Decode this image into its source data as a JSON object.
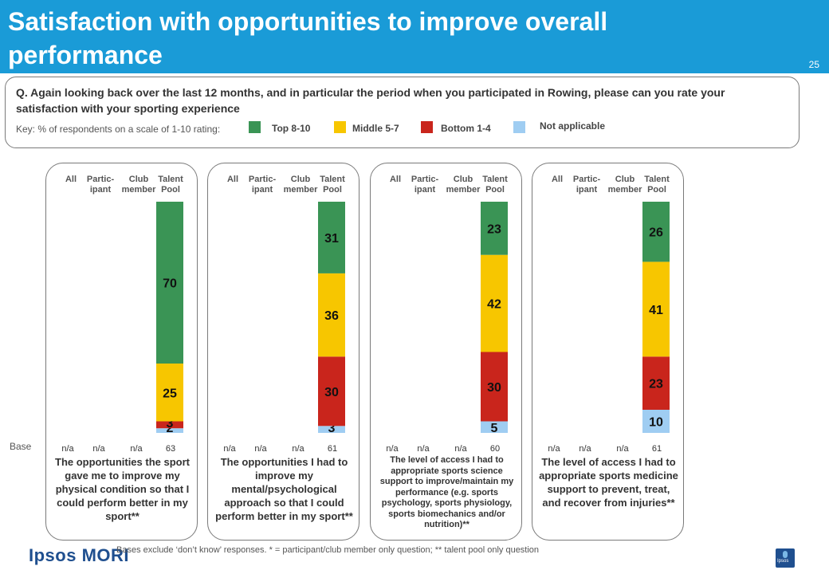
{
  "header": {
    "title": "Satisfaction with opportunities to improve overall performance",
    "page_number": "25"
  },
  "question": {
    "text": "Q. Again looking back over the last 12 months, and in particular the period when you participated in Rowing, please can you rate your satisfaction with your sporting experience",
    "key_label": "Key: % of respondents on a scale of 1-10 rating:",
    "legend": [
      {
        "label": "Top 8-10",
        "color": "#3a9455"
      },
      {
        "label": "Middle 5-7",
        "color": "#f7c600"
      },
      {
        "label": "Bottom 1-4",
        "color": "#c9251c"
      },
      {
        "label": "Not applicable",
        "color": "#9fcdf2"
      }
    ]
  },
  "columns": [
    "All",
    "Partic-\nipant",
    "Club\nmember",
    "Talent\nPool"
  ],
  "base_label": "Base",
  "chart_data": [
    {
      "type": "bar",
      "stacked": true,
      "title": "The opportunities the sport gave me to improve my physical condition so that I could perform better in my sport**",
      "categories": [
        "All",
        "Partic-ipant",
        "Club member",
        "Talent Pool"
      ],
      "bases": [
        "n/a",
        "n/a",
        "n/a",
        "63"
      ],
      "series": [
        {
          "name": "Not applicable",
          "values": [
            null,
            null,
            null,
            2
          ]
        },
        {
          "name": "Bottom 1-4",
          "values": [
            null,
            null,
            null,
            3
          ]
        },
        {
          "name": "Middle 5-7",
          "values": [
            null,
            null,
            null,
            25
          ]
        },
        {
          "name": "Top 8-10",
          "values": [
            null,
            null,
            null,
            70
          ]
        }
      ],
      "ylim": [
        0,
        100
      ]
    },
    {
      "type": "bar",
      "stacked": true,
      "title": "The opportunities I had to improve my mental/psychological approach so that I could perform better in my sport**",
      "categories": [
        "All",
        "Partic-ipant",
        "Club member",
        "Talent Pool"
      ],
      "bases": [
        "n/a",
        "n/a",
        "n/a",
        "61"
      ],
      "series": [
        {
          "name": "Not applicable",
          "values": [
            null,
            null,
            null,
            3
          ]
        },
        {
          "name": "Bottom 1-4",
          "values": [
            null,
            null,
            null,
            30
          ]
        },
        {
          "name": "Middle 5-7",
          "values": [
            null,
            null,
            null,
            36
          ]
        },
        {
          "name": "Top 8-10",
          "values": [
            null,
            null,
            null,
            31
          ]
        }
      ],
      "ylim": [
        0,
        100
      ]
    },
    {
      "type": "bar",
      "stacked": true,
      "title": "The level of access I had to appropriate sports science support to improve/maintain my performance (e.g. sports psychology, sports physiology, sports biomechanics and/or nutrition)**",
      "categories": [
        "All",
        "Partic-ipant",
        "Club member",
        "Talent Pool"
      ],
      "bases": [
        "n/a",
        "n/a",
        "n/a",
        "60"
      ],
      "series": [
        {
          "name": "Not applicable",
          "values": [
            null,
            null,
            null,
            5
          ]
        },
        {
          "name": "Bottom 1-4",
          "values": [
            null,
            null,
            null,
            30
          ]
        },
        {
          "name": "Middle 5-7",
          "values": [
            null,
            null,
            null,
            42
          ]
        },
        {
          "name": "Top 8-10",
          "values": [
            null,
            null,
            null,
            23
          ]
        }
      ],
      "ylim": [
        0,
        100
      ]
    },
    {
      "type": "bar",
      "stacked": true,
      "title": "The level of access I had to appropriate sports medicine support to prevent, treat, and recover from injuries**",
      "categories": [
        "All",
        "Partic-ipant",
        "Club member",
        "Talent Pool"
      ],
      "bases": [
        "n/a",
        "n/a",
        "n/a",
        "61"
      ],
      "series": [
        {
          "name": "Not applicable",
          "values": [
            null,
            null,
            null,
            10
          ]
        },
        {
          "name": "Bottom 1-4",
          "values": [
            null,
            null,
            null,
            23
          ]
        },
        {
          "name": "Middle 5-7",
          "values": [
            null,
            null,
            null,
            41
          ]
        },
        {
          "name": "Top 8-10",
          "values": [
            null,
            null,
            null,
            26
          ]
        }
      ],
      "ylim": [
        0,
        100
      ]
    }
  ],
  "footer": {
    "logo": "Ipsos MORI",
    "note": "Bases exclude ‘don’t know’ responses. * = participant/club member only question; ** talent pool only question",
    "corner_logo": "Ipsos"
  }
}
